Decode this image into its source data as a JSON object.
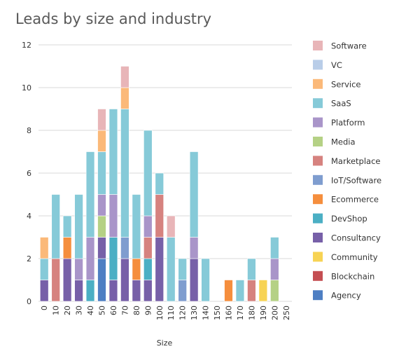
{
  "chart_data": {
    "type": "bar",
    "stacked": true,
    "title": "Leads by size and industry",
    "xlabel": "Size",
    "ylabel": "",
    "ylim": [
      0,
      12
    ],
    "yticks": [
      0,
      2,
      4,
      6,
      8,
      10,
      12
    ],
    "grid": true,
    "legend_position": "right",
    "categories": [
      "0",
      "10",
      "20",
      "30",
      "40",
      "50",
      "60",
      "70",
      "80",
      "90",
      "100",
      "110",
      "120",
      "130",
      "140",
      "150",
      "160",
      "170",
      "180",
      "190",
      "200",
      "250"
    ],
    "series": [
      {
        "name": "Agency",
        "color": "#4e7fc3",
        "values": [
          0,
          0,
          0,
          0,
          0,
          2,
          0,
          0,
          0,
          0,
          0,
          0,
          0,
          0,
          0,
          0,
          0,
          0,
          0,
          0,
          0,
          0
        ]
      },
      {
        "name": "Blockchain",
        "color": "#c44e52",
        "values": [
          0,
          0,
          0,
          0,
          0,
          0,
          0,
          0,
          0,
          0,
          0,
          0,
          0,
          0,
          0,
          0,
          0,
          0,
          0,
          0,
          0,
          0
        ]
      },
      {
        "name": "Community",
        "color": "#f7d354",
        "values": [
          0,
          0,
          0,
          0,
          0,
          0,
          0,
          0,
          0,
          0,
          0,
          0,
          0,
          0,
          0,
          0,
          0,
          0,
          0,
          1,
          0,
          0
        ]
      },
      {
        "name": "Consultancy",
        "color": "#7760a8",
        "values": [
          1,
          0,
          2,
          1,
          0,
          1,
          1,
          2,
          1,
          1,
          3,
          0,
          0,
          2,
          0,
          0,
          0,
          0,
          0,
          0,
          0,
          0
        ]
      },
      {
        "name": "DevShop",
        "color": "#4bafc4",
        "values": [
          0,
          0,
          0,
          0,
          1,
          0,
          2,
          0,
          0,
          1,
          0,
          0,
          0,
          0,
          0,
          0,
          0,
          0,
          0,
          0,
          0,
          0
        ]
      },
      {
        "name": "Ecommerce",
        "color": "#f58e3d",
        "values": [
          0,
          0,
          1,
          0,
          0,
          0,
          0,
          0,
          1,
          0,
          0,
          0,
          0,
          0,
          0,
          0,
          1,
          0,
          0,
          0,
          0,
          0
        ]
      },
      {
        "name": "IoT/Software",
        "color": "#7f9dcf",
        "values": [
          0,
          0,
          0,
          0,
          0,
          0,
          0,
          1,
          0,
          0,
          0,
          0,
          1,
          0,
          0,
          0,
          0,
          0,
          0,
          0,
          0,
          0
        ]
      },
      {
        "name": "Marketplace",
        "color": "#d6827f",
        "values": [
          0,
          2,
          0,
          0,
          0,
          0,
          0,
          0,
          0,
          1,
          2,
          0,
          0,
          0,
          0,
          0,
          0,
          0,
          1,
          0,
          0,
          0
        ]
      },
      {
        "name": "Media",
        "color": "#b5d185",
        "values": [
          0,
          0,
          0,
          0,
          0,
          1,
          0,
          0,
          0,
          0,
          0,
          0,
          0,
          0,
          0,
          0,
          0,
          0,
          0,
          0,
          1,
          0
        ]
      },
      {
        "name": "Platform",
        "color": "#a995c9",
        "values": [
          0,
          0,
          0,
          1,
          2,
          1,
          2,
          0,
          0,
          1,
          0,
          0,
          0,
          1,
          0,
          0,
          0,
          0,
          0,
          0,
          1,
          0
        ]
      },
      {
        "name": "SaaS",
        "color": "#86cad8",
        "values": [
          1,
          3,
          1,
          3,
          4,
          2,
          4,
          6,
          3,
          4,
          1,
          3,
          1,
          4,
          2,
          0,
          0,
          1,
          1,
          0,
          1,
          0
        ]
      },
      {
        "name": "Service",
        "color": "#fbb979",
        "values": [
          1,
          0,
          0,
          0,
          0,
          1,
          0,
          1,
          0,
          0,
          0,
          0,
          0,
          0,
          0,
          0,
          0,
          0,
          0,
          0,
          0,
          0
        ]
      },
      {
        "name": "VC",
        "color": "#b9cde8",
        "values": [
          0,
          0,
          0,
          0,
          0,
          0,
          0,
          0,
          0,
          0,
          0,
          0,
          0,
          0,
          0,
          0,
          0,
          0,
          0,
          0,
          0,
          0
        ]
      },
      {
        "name": "Software",
        "color": "#e8b5b8",
        "values": [
          0,
          0,
          0,
          0,
          0,
          1,
          0,
          1,
          0,
          0,
          0,
          1,
          0,
          0,
          0,
          0,
          0,
          0,
          0,
          0,
          0,
          0
        ]
      }
    ]
  }
}
